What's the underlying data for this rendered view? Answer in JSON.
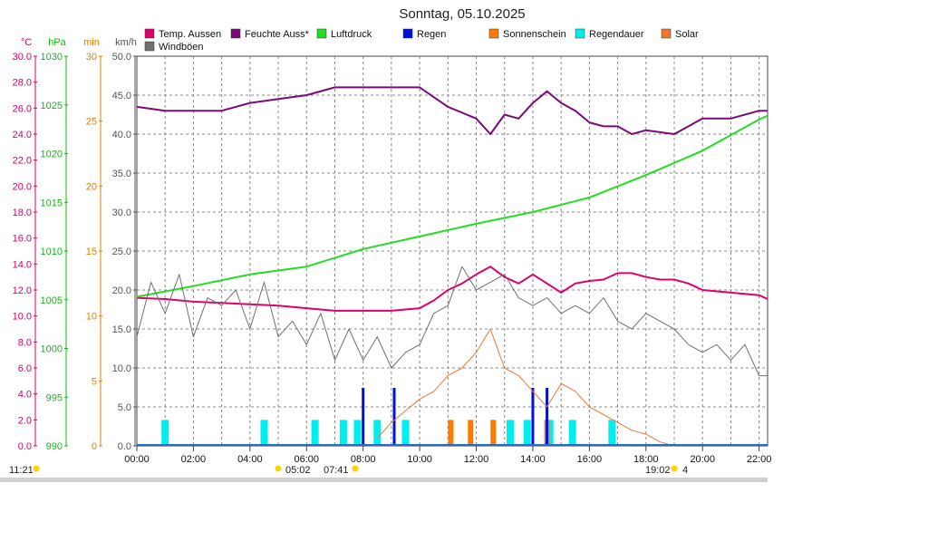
{
  "chart_data": {
    "type": "line",
    "title": "Sonntag, 05.10.2025",
    "x_ticks": [
      "00:00",
      "02:00",
      "04:00",
      "06:00",
      "08:00",
      "10:00",
      "12:00",
      "14:00",
      "16:00",
      "18:00",
      "20:00",
      "22:00"
    ],
    "x_range_hours": [
      0,
      22.3
    ],
    "axes": [
      {
        "unit": "°C",
        "color": "#d4006c",
        "min": 0,
        "max": 30,
        "ticks": [
          "0.0",
          "2.0",
          "4.0",
          "6.0",
          "8.0",
          "10.0",
          "12.0",
          "14.0",
          "16.0",
          "18.0",
          "20.0",
          "22.0",
          "24.0",
          "26.0",
          "28.0",
          "30.0"
        ]
      },
      {
        "unit": "hPa",
        "color": "#11bb11",
        "min": 990,
        "max": 1030,
        "ticks": [
          "990",
          "995",
          "1000",
          "1005",
          "1010",
          "1015",
          "1020",
          "1025",
          "1030"
        ]
      },
      {
        "unit": "min",
        "color": "#e08000",
        "min": 0,
        "max": 30,
        "ticks": [
          "0",
          "5",
          "10",
          "15",
          "20",
          "25",
          "30"
        ]
      },
      {
        "unit": "km/h",
        "color": "#555555",
        "min": 0,
        "max": 50,
        "ticks": [
          "0.0",
          "5.0",
          "10.0",
          "15.0",
          "20.0",
          "25.0",
          "30.0",
          "35.0",
          "40.0",
          "45.0",
          "50.0"
        ]
      }
    ],
    "legend": [
      {
        "name": "Temp. Aussen",
        "color": "#e0006c"
      },
      {
        "name": "Feuchte Auss*",
        "color": "#7a0a7a"
      },
      {
        "name": "Luftdruck",
        "color": "#22dd22"
      },
      {
        "name": "Regen",
        "color": "#0010dd"
      },
      {
        "name": "Sonnenschein",
        "color": "#ff7a00"
      },
      {
        "name": "Regendauer",
        "color": "#00eeee"
      },
      {
        "name": "Solar",
        "color": "#ee7733"
      },
      {
        "name": "Windböen",
        "color": "#707070"
      }
    ],
    "grid": true,
    "series": [
      {
        "name": "Temp. Aussen",
        "axis": "°C",
        "x": [
          0,
          1,
          2,
          3,
          4,
          5,
          6,
          7,
          8,
          9,
          10,
          10.5,
          11,
          11.5,
          12,
          12.5,
          13,
          13.5,
          14,
          14.5,
          15,
          15.5,
          16,
          16.5,
          17,
          17.5,
          18,
          18.5,
          19,
          19.5,
          20,
          21,
          22,
          22.3
        ],
        "y": [
          11.4,
          11.3,
          11.1,
          11.0,
          10.9,
          10.8,
          10.6,
          10.4,
          10.4,
          10.4,
          10.6,
          11.2,
          12.0,
          12.5,
          13.2,
          13.8,
          13.0,
          12.5,
          13.2,
          12.5,
          11.8,
          12.5,
          12.7,
          12.8,
          13.3,
          13.3,
          13.0,
          12.8,
          12.8,
          12.5,
          12.0,
          11.8,
          11.6,
          11.3
        ]
      },
      {
        "name": "Feuchte Auss*",
        "axis": "km/h",
        "x": [
          0,
          1,
          2,
          3,
          4,
          5,
          6,
          7,
          8,
          9,
          10,
          11,
          12,
          12.5,
          13,
          13.5,
          14,
          14.5,
          15,
          15.5,
          16,
          16.5,
          17,
          17.5,
          18,
          19,
          20,
          21,
          22,
          22.3
        ],
        "y": [
          43.5,
          43.0,
          43.0,
          43.0,
          44.0,
          44.5,
          45.0,
          46.0,
          46.0,
          46.0,
          46.0,
          43.5,
          42.0,
          40.0,
          42.5,
          42.0,
          44.0,
          45.5,
          44.0,
          43.0,
          41.5,
          41.0,
          41.0,
          40.0,
          40.5,
          40.0,
          42.0,
          42.0,
          43.0,
          43.0
        ]
      },
      {
        "name": "Luftdruck",
        "axis": "hPa",
        "x": [
          0,
          2,
          4,
          6,
          8,
          10,
          12,
          14,
          16,
          18,
          20,
          22,
          22.3
        ],
        "y": [
          1005.3,
          1006.4,
          1007.6,
          1008.4,
          1010.2,
          1011.5,
          1012.8,
          1014.0,
          1015.5,
          1017.8,
          1020.3,
          1023.5,
          1023.9
        ]
      },
      {
        "name": "Windböen",
        "axis": "km/h",
        "x": [
          0,
          0.5,
          1,
          1.5,
          2,
          2.5,
          3,
          3.5,
          4,
          4.5,
          5,
          5.5,
          6,
          6.5,
          7,
          7.5,
          8,
          8.5,
          9,
          9.5,
          10,
          10.5,
          11,
          11.5,
          12,
          12.5,
          13,
          13.5,
          14,
          14.5,
          15,
          15.5,
          16,
          16.5,
          17,
          17.5,
          18,
          18.5,
          19,
          19.5,
          20,
          20.5,
          21,
          21.5,
          22,
          22.3
        ],
        "y": [
          14,
          21,
          17,
          22,
          14,
          19,
          18,
          20,
          15,
          21,
          14,
          16,
          13,
          17,
          11,
          15,
          11,
          14,
          10,
          12,
          13,
          17,
          18,
          23,
          20,
          21,
          22,
          19,
          18,
          19,
          17,
          18,
          17,
          19,
          16,
          15,
          17,
          16,
          15,
          13,
          12,
          13,
          11,
          13,
          9,
          9
        ]
      },
      {
        "name": "Solar",
        "axis": "km/h",
        "x": [
          8.5,
          9,
          9.5,
          10,
          10.5,
          11,
          11.5,
          12,
          12.5,
          13,
          13.5,
          14,
          14.5,
          15,
          15.5,
          16,
          16.5,
          17,
          17.5,
          18,
          18.5,
          19
        ],
        "y": [
          1,
          3,
          4.5,
          6,
          7,
          9,
          10,
          12,
          15,
          10,
          9,
          7,
          5,
          8,
          7,
          5,
          4,
          3,
          2,
          1.5,
          0.5,
          0
        ]
      }
    ],
    "bars": {
      "Regendauer_min": [
        {
          "x": 1,
          "y": 2
        },
        {
          "x": 4.5,
          "y": 2
        },
        {
          "x": 6.3,
          "y": 2
        },
        {
          "x": 7.3,
          "y": 2
        },
        {
          "x": 7.8,
          "y": 2
        },
        {
          "x": 8.5,
          "y": 2
        },
        {
          "x": 9.5,
          "y": 2
        },
        {
          "x": 13.2,
          "y": 2
        },
        {
          "x": 13.8,
          "y": 2
        },
        {
          "x": 14.6,
          "y": 2
        },
        {
          "x": 15.4,
          "y": 2
        },
        {
          "x": 16.8,
          "y": 2
        }
      ],
      "Sonnenschein_min": [
        {
          "x": 11.1,
          "y": 2
        },
        {
          "x": 11.8,
          "y": 2
        },
        {
          "x": 12.6,
          "y": 2
        },
        {
          "x": 14.5,
          "y": 2
        }
      ],
      "Regen": [
        {
          "x": 8.0,
          "y": 0.0075
        },
        {
          "x": 9.1,
          "y": 0.0075
        },
        {
          "x": 14.0,
          "y": 0.0075
        },
        {
          "x": 14.5,
          "y": 0.0075
        }
      ]
    }
  },
  "sun": {
    "left_time": "11:21",
    "sunrise": "05:02",
    "dawn": "07:41",
    "sunset": "19:02",
    "sunset_suffix": "4"
  }
}
